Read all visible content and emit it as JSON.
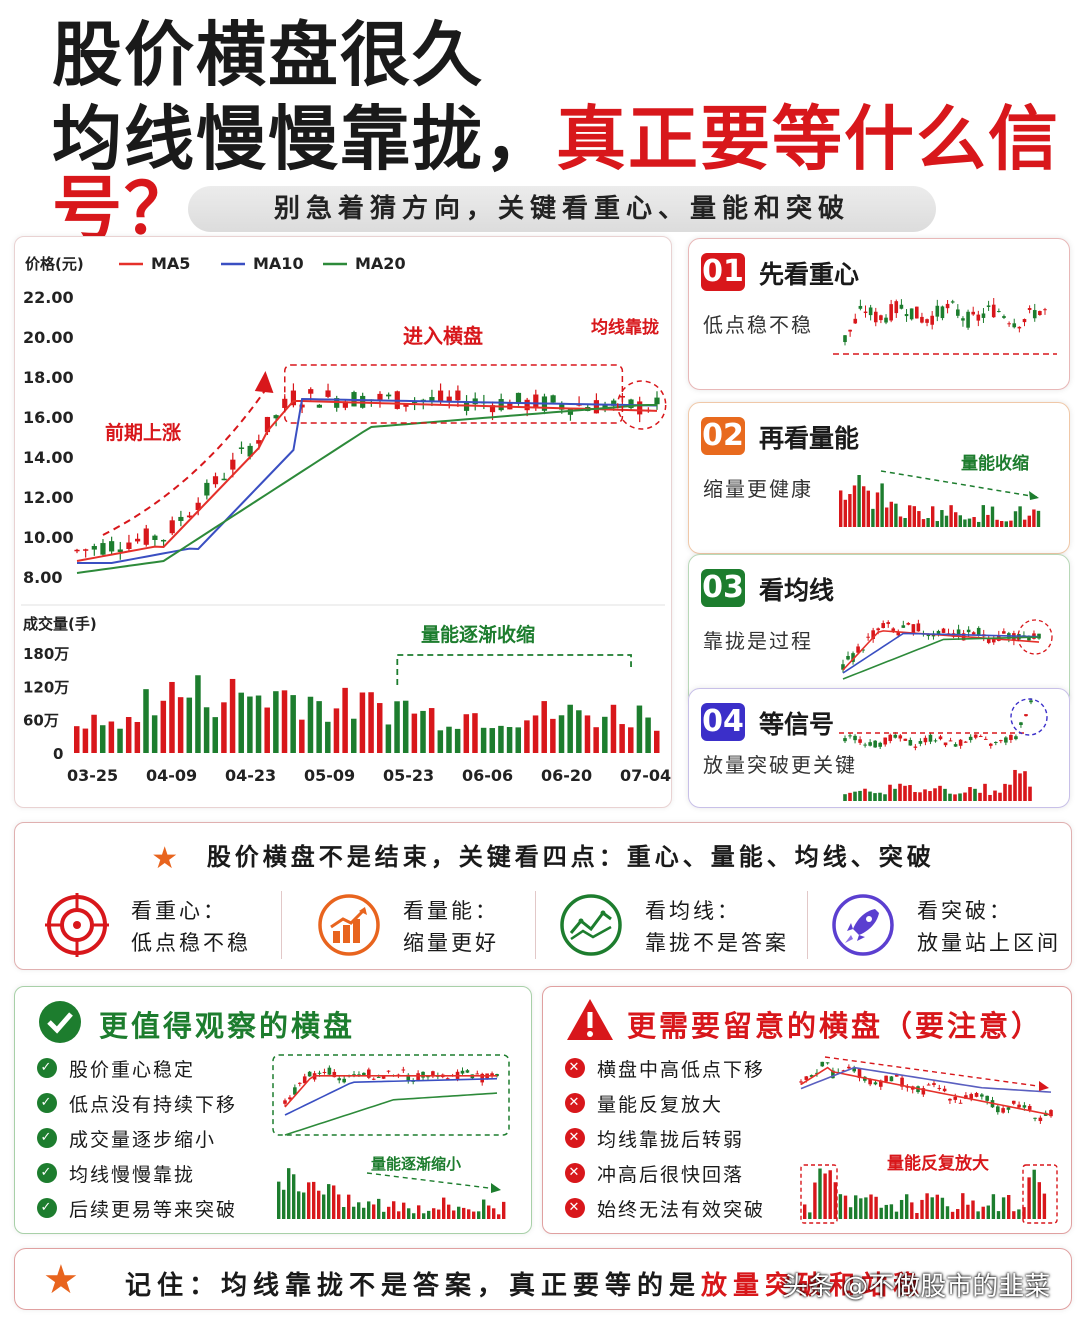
{
  "header": {
    "title_line1": "股价横盘很久",
    "title_line2_black": "均线慢慢靠拢，",
    "title_line2_red": "真正要等什么信号？",
    "subtitle": "别急着猜方向，关键看重心、量能和突破"
  },
  "colors": {
    "up": "#d8171b",
    "down": "#1d7d2e",
    "ma5": "#e5302a",
    "ma10": "#3a4fc2",
    "ma20": "#2d8a3a",
    "accent": "#d8171b"
  },
  "chart_data": {
    "type": "line",
    "title": "",
    "ylabel": "价格(元)",
    "ylim": [
      8,
      22
    ],
    "yticks": [
      "22.00",
      "20.00",
      "18.00",
      "16.00",
      "14.00",
      "12.00",
      "10.00",
      "8.00"
    ],
    "legend": [
      "MA5",
      "MA10",
      "MA20"
    ],
    "x": [
      "03-25",
      "04-09",
      "04-23",
      "05-09",
      "05-23",
      "06-06",
      "06-20",
      "07-04"
    ],
    "series": [
      {
        "name": "MA5",
        "values": [
          9.5,
          10.0,
          12.5,
          16.6,
          17.0,
          16.7,
          16.5,
          16.6
        ]
      },
      {
        "name": "MA10",
        "values": [
          9.4,
          9.9,
          11.8,
          15.8,
          16.9,
          16.8,
          16.6,
          16.6
        ]
      },
      {
        "name": "MA20",
        "values": [
          8.2,
          8.8,
          10.2,
          13.5,
          15.5,
          16.0,
          16.4,
          16.6
        ]
      }
    ],
    "annotations": {
      "rise": "前期上涨",
      "range": "进入横盘",
      "converge": "均线靠拢",
      "volume_shrink": "量能逐渐收缩"
    },
    "volume": {
      "label": "成交量(手)",
      "ticks": [
        "180万",
        "120万",
        "60万",
        "0"
      ],
      "ylim": [
        0,
        180
      ]
    }
  },
  "cards": [
    {
      "num": "01",
      "title": "先看重心",
      "desc": "低点稳不稳",
      "bg": "#d8171b"
    },
    {
      "num": "02",
      "title": "再看量能",
      "desc": "缩量更健康",
      "note": "量能收缩",
      "bg": "#e86a1e"
    },
    {
      "num": "03",
      "title": "看均线",
      "desc": "靠拢是过程",
      "bg": "#1d7d2e"
    },
    {
      "num": "04",
      "title": "等信号",
      "desc": "放量突破更关键",
      "bg": "#3b2fc9"
    }
  ],
  "keypoints": {
    "heading": "股价横盘不是结束，关键看四点：重心、量能、均线、突破",
    "items": [
      {
        "t1": "看重心：",
        "t2": "低点稳不稳"
      },
      {
        "t1": "看量能：",
        "t2": "缩量更好"
      },
      {
        "t1": "看均线：",
        "t2": "靠拢不是答案"
      },
      {
        "t1": "看突破：",
        "t2": "放量站上区间"
      }
    ]
  },
  "good": {
    "title": "更值得观察的横盘",
    "items": [
      "股价重心稳定",
      "低点没有持续下移",
      "成交量逐步缩小",
      "均线慢慢靠拢",
      "后续更易等来突破"
    ],
    "note": "量能逐渐缩小"
  },
  "bad": {
    "title": "更需要留意的横盘（要注意）",
    "items": [
      "横盘中高低点下移",
      "量能反复放大",
      "均线靠拢后转弱",
      "冲高后很快回落",
      "始终无法有效突破"
    ],
    "note": "量能反复放大"
  },
  "footer": {
    "prefix": "记住：均线靠拢不是答案，真正要等的是",
    "red": "放量突破和站稳"
  },
  "watermark": "头条 @不做股市的韭菜"
}
